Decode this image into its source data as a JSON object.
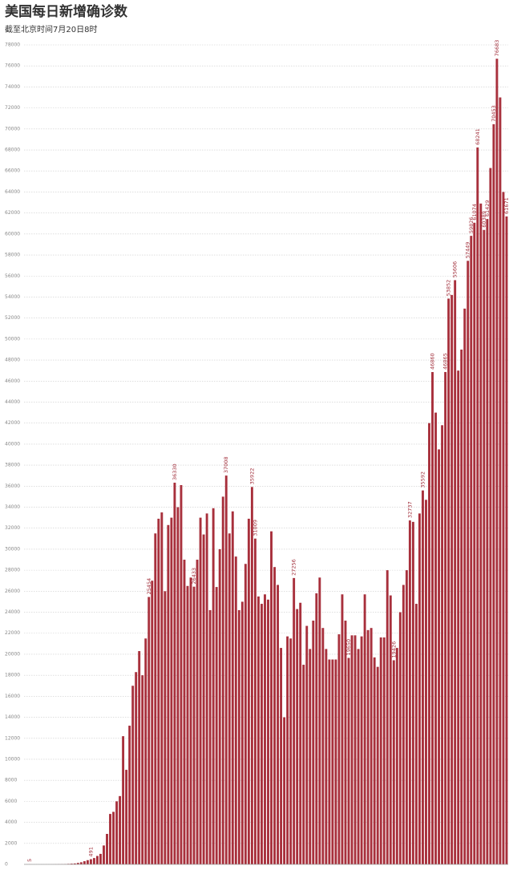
{
  "chart_data": {
    "type": "bar",
    "title": "美国每日新增确诊数",
    "subtitle": "截至北京时间7月20日8时",
    "color": "#a8303c",
    "values": [
      5,
      0,
      1,
      0,
      2,
      1,
      3,
      5,
      10,
      15,
      20,
      30,
      50,
      70,
      90,
      140,
      200,
      300,
      400,
      491,
      600,
      800,
      1000,
      1800,
      2900,
      4800,
      5000,
      6000,
      6500,
      12200,
      9000,
      13200,
      17000,
      18300,
      20300,
      18000,
      21500,
      25454,
      27000,
      31500,
      32900,
      33500,
      26000,
      32300,
      33000,
      36330,
      34000,
      36100,
      29000,
      26500,
      27300,
      26433,
      29000,
      33000,
      31400,
      33400,
      24200,
      33900,
      26400,
      30000,
      35000,
      37008,
      31500,
      33600,
      29300,
      24200,
      25000,
      28600,
      32900,
      35922,
      31009,
      25500,
      24800,
      25700,
      25200,
      31700,
      28300,
      26600,
      20600,
      14000,
      21700,
      21500,
      27256,
      24300,
      24900,
      19000,
      22700,
      20500,
      23200,
      25800,
      27300,
      22500,
      20500,
      19500,
      19500,
      19500,
      21900,
      25700,
      23200,
      19650,
      21800,
      21800,
      20500,
      21700,
      25700,
      22300,
      22500,
      19700,
      18800,
      21600,
      21600,
      28000,
      25600,
      19426,
      20600,
      24000,
      26600,
      28000,
      32737,
      32600,
      24800,
      33400,
      35592,
      34700,
      42000,
      46860,
      43000,
      39500,
      41800,
      46865,
      53852,
      54200,
      55606,
      47000,
      49000,
      52900,
      57449,
      59826,
      61074,
      68241,
      62900,
      60389,
      61429,
      66280,
      70453,
      76683,
      73000,
      64000,
      61671
    ],
    "value_labels": [
      "5",
      null,
      null,
      null,
      null,
      null,
      null,
      null,
      null,
      null,
      null,
      null,
      null,
      null,
      null,
      null,
      null,
      null,
      null,
      "491",
      null,
      null,
      null,
      null,
      null,
      null,
      null,
      null,
      null,
      null,
      null,
      null,
      null,
      null,
      null,
      null,
      null,
      "25454",
      null,
      null,
      null,
      null,
      null,
      null,
      null,
      "36330",
      null,
      null,
      null,
      null,
      null,
      "26433",
      null,
      null,
      null,
      null,
      null,
      null,
      null,
      null,
      null,
      "37008",
      null,
      null,
      null,
      null,
      null,
      null,
      null,
      "35922",
      "31009",
      null,
      null,
      null,
      null,
      null,
      null,
      null,
      null,
      null,
      null,
      null,
      "27256",
      null,
      null,
      null,
      null,
      null,
      null,
      null,
      null,
      null,
      null,
      null,
      null,
      null,
      null,
      null,
      null,
      "19650",
      null,
      null,
      null,
      null,
      null,
      null,
      null,
      null,
      null,
      null,
      null,
      null,
      null,
      "19426",
      null,
      null,
      null,
      null,
      "32737",
      null,
      null,
      null,
      "35592",
      null,
      null,
      "46860",
      null,
      null,
      null,
      "46865",
      "53852",
      null,
      "55606",
      null,
      null,
      null,
      "57449",
      "59826",
      "61074",
      "68241",
      null,
      "60389",
      "61429",
      null,
      "70453",
      "76683",
      null,
      null,
      "61671"
    ],
    "ylim": [
      0,
      78000
    ],
    "yticks": [
      0,
      2000,
      4000,
      6000,
      8000,
      10000,
      12000,
      14000,
      16000,
      18000,
      20000,
      22000,
      24000,
      26000,
      28000,
      30000,
      32000,
      34000,
      36000,
      38000,
      40000,
      42000,
      44000,
      46000,
      48000,
      50000,
      52000,
      54000,
      56000,
      58000,
      60000,
      62000,
      64000,
      66000,
      68000,
      70000,
      72000,
      74000,
      76000,
      78000
    ],
    "grid": true
  }
}
